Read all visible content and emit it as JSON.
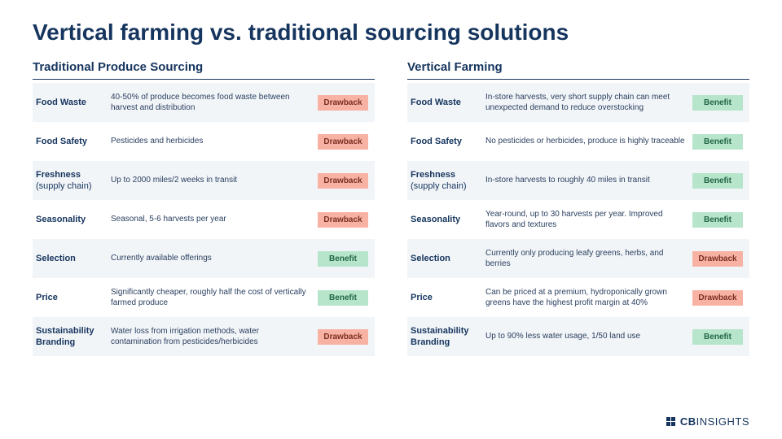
{
  "title": "Vertical farming vs. traditional sourcing solutions",
  "colors": {
    "heading": "#16355e",
    "text": "#2a3f5f",
    "alt_row_bg": "#f2f5f8",
    "benefit_bg": "#b7e5cc",
    "drawback_bg": "#f8b2a4",
    "page_bg": "#ffffff"
  },
  "tag_labels": {
    "benefit": "Benefit",
    "drawback": "Drawback"
  },
  "left": {
    "title": "Traditional Produce Sourcing",
    "rows": [
      {
        "label": "Food Waste",
        "sub": "",
        "desc": "40-50% of produce becomes food waste between harvest and distribution",
        "tag": "drawback"
      },
      {
        "label": "Food Safety",
        "sub": "",
        "desc": "Pesticides and herbicides",
        "tag": "drawback"
      },
      {
        "label": "Freshness",
        "sub": "(supply chain)",
        "desc": "Up to 2000 miles/2 weeks in transit",
        "tag": "drawback"
      },
      {
        "label": "Seasonality",
        "sub": "",
        "desc": "Seasonal, 5-6 harvests per year",
        "tag": "drawback"
      },
      {
        "label": "Selection",
        "sub": "",
        "desc": "Currently available offerings",
        "tag": "benefit"
      },
      {
        "label": "Price",
        "sub": "",
        "desc": "Significantly cheaper, roughly half the cost of vertically farmed produce",
        "tag": "benefit"
      },
      {
        "label": "Sustainability Branding",
        "sub": "",
        "desc": "Water loss from irrigation methods, water contamination from pesticides/herbicides",
        "tag": "drawback"
      }
    ]
  },
  "right": {
    "title": "Vertical Farming",
    "rows": [
      {
        "label": "Food Waste",
        "sub": "",
        "desc": "In-store harvests, very short supply chain can meet unexpected demand to reduce overstocking",
        "tag": "benefit"
      },
      {
        "label": "Food Safety",
        "sub": "",
        "desc": "No pesticides or herbicides, produce is highly traceable",
        "tag": "benefit"
      },
      {
        "label": "Freshness",
        "sub": "(supply chain)",
        "desc": "In-store harvests to roughly 40 miles in transit",
        "tag": "benefit"
      },
      {
        "label": "Seasonality",
        "sub": "",
        "desc": "Year-round, up to 30 harvests per year. Improved flavors and textures",
        "tag": "benefit"
      },
      {
        "label": "Selection",
        "sub": "",
        "desc": "Currently only producing leafy greens, herbs, and berries",
        "tag": "drawback"
      },
      {
        "label": "Price",
        "sub": "",
        "desc": "Can be priced at a premium, hydroponically grown greens have the highest profit margin at 40%",
        "tag": "drawback"
      },
      {
        "label": "Sustainability Branding",
        "sub": "",
        "desc": "Up to 90% less water usage, 1/50 land use",
        "tag": "benefit"
      }
    ]
  },
  "footer": {
    "brand_bold": "CB",
    "brand_rest": "INSIGHTS"
  }
}
